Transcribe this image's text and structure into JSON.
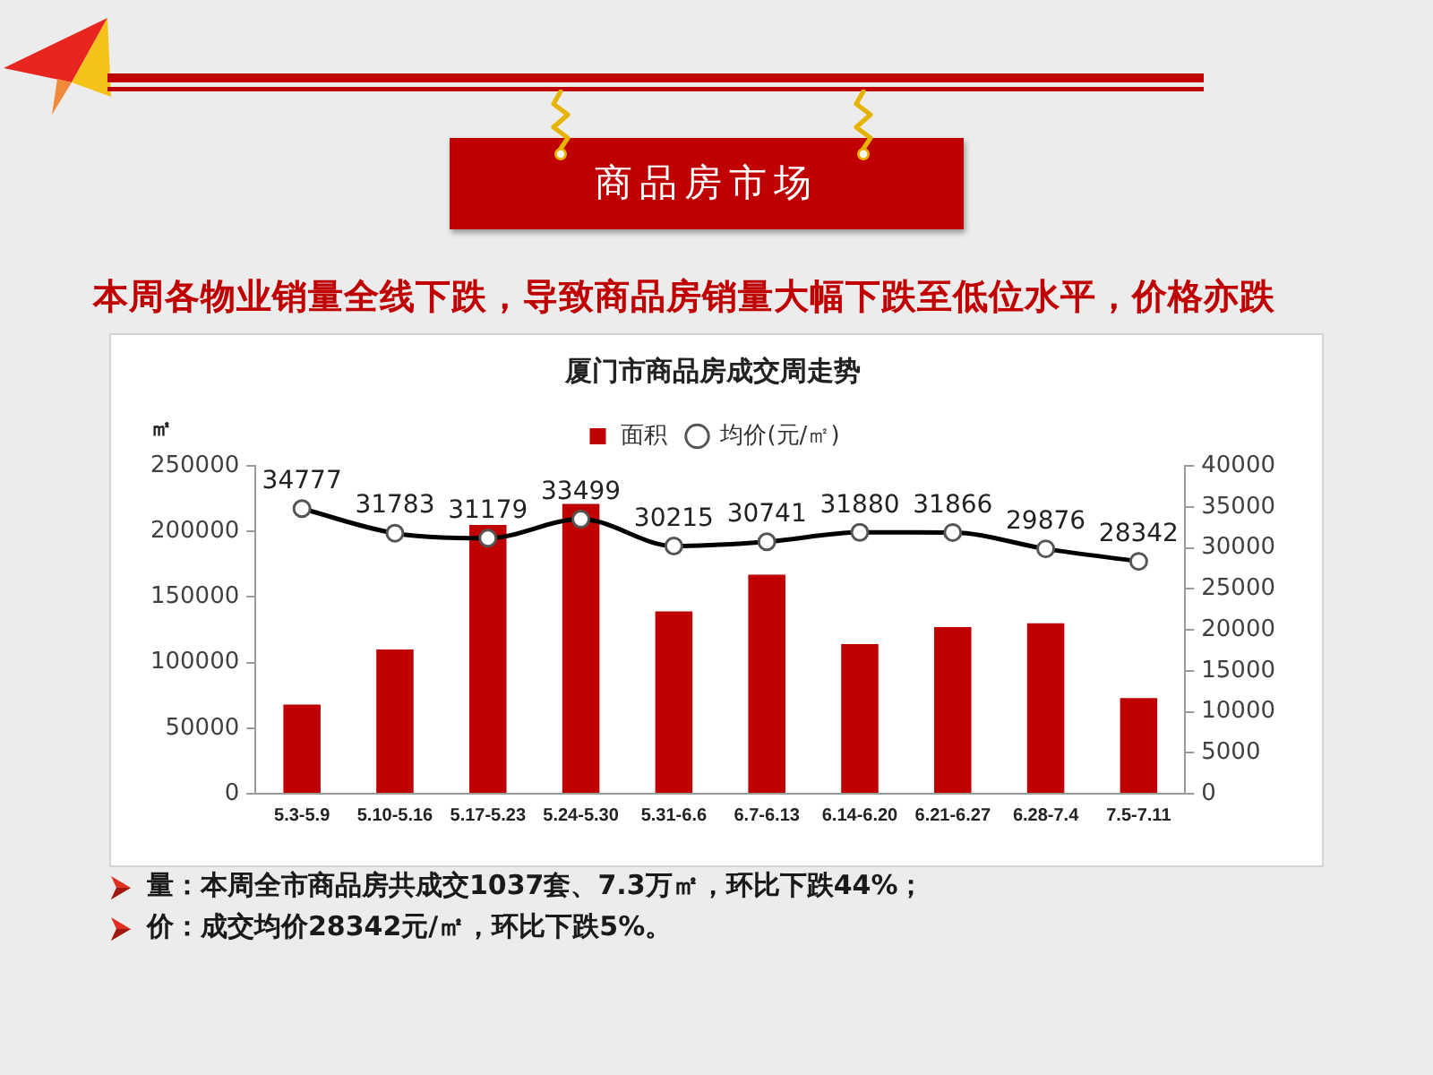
{
  "chart_data": {
    "type": "bar",
    "title": "厦门市商品房成交周走势",
    "ylabel": "㎡",
    "categories": [
      "5.3-5.9",
      "5.10-5.16",
      "5.17-5.23",
      "5.24-5.30",
      "5.31-6.6",
      "6.7-6.13",
      "6.14-6.20",
      "6.21-6.27",
      "6.28-7.4",
      "7.5-7.11"
    ],
    "series": [
      {
        "name": "面积",
        "color": "#c00000",
        "values": [
          68000,
          110000,
          205000,
          221000,
          139000,
          167000,
          114000,
          127000,
          130000,
          73000
        ]
      },
      {
        "name": "均价(元/㎡)",
        "type": "line",
        "axis": "y2",
        "color": "#000000",
        "values": [
          34777,
          31783,
          31179,
          33499,
          30215,
          30741,
          31880,
          31866,
          29876,
          28342
        ],
        "value_labels": [
          "34777",
          "31783",
          "31179",
          "33499",
          "30215",
          "30741",
          "31880",
          "31866",
          "29876",
          "28342"
        ]
      }
    ],
    "ylim": [
      0,
      250000
    ],
    "yticks": [
      0,
      50000,
      100000,
      150000,
      200000,
      250000
    ],
    "y2lim": [
      0,
      40000
    ],
    "y2ticks": [
      0,
      5000,
      10000,
      15000,
      20000,
      25000,
      30000,
      35000,
      40000
    ],
    "legend": "top",
    "marker": "circle",
    "annotations": [
      "商品房市场",
      "本周各物业销量全线下跌，导致商品房销量大幅下跌至低位水平，价格亦跌",
      "量：本周全市商品房共成交1037套、7.3万㎡，环比下跌44%；",
      "价：成交均价28342元/㎡，环比下跌5%。"
    ]
  }
}
